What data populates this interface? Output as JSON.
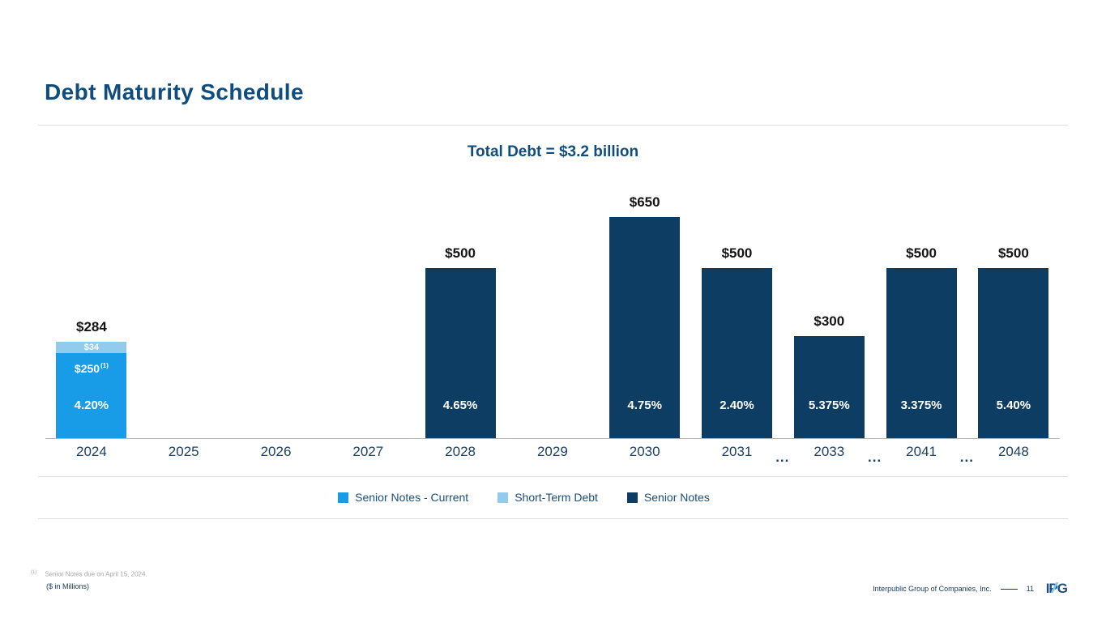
{
  "slide": {
    "title": "Debt Maturity Schedule"
  },
  "chart_data": {
    "type": "bar",
    "stacked": true,
    "title": "Total Debt = $3.2 billion",
    "xlabel": "",
    "ylabel": "",
    "units": "$ in Millions",
    "ylim": [
      0,
      700
    ],
    "grid": false,
    "legend_position": "bottom",
    "gap_label": "...",
    "categories": [
      "2024",
      "2025",
      "2026",
      "2027",
      "2028",
      "2029",
      "2030",
      "2031",
      "2033",
      "2041",
      "2048"
    ],
    "series_colors": {
      "Senior Notes - Current": "#189CE8",
      "Short-Term Debt": "#92CBEC",
      "Senior Notes": "#0E3D63"
    },
    "bars": [
      {
        "category": "2024",
        "total": 284,
        "total_label": "$284",
        "rate_label": "4.20%",
        "gap_after": false,
        "segments": [
          {
            "series": "Short-Term Debt",
            "value": 34,
            "label": "$34"
          },
          {
            "series": "Senior Notes - Current",
            "value": 250,
            "label": "$250",
            "footnote_marker": "(1)"
          }
        ]
      },
      {
        "category": "2025",
        "total": 0,
        "total_label": "",
        "rate_label": "",
        "gap_after": false,
        "segments": []
      },
      {
        "category": "2026",
        "total": 0,
        "total_label": "",
        "rate_label": "",
        "gap_after": false,
        "segments": []
      },
      {
        "category": "2027",
        "total": 0,
        "total_label": "",
        "rate_label": "",
        "gap_after": false,
        "segments": []
      },
      {
        "category": "2028",
        "total": 500,
        "total_label": "$500",
        "rate_label": "4.65%",
        "gap_after": false,
        "segments": [
          {
            "series": "Senior Notes",
            "value": 500
          }
        ]
      },
      {
        "category": "2029",
        "total": 0,
        "total_label": "",
        "rate_label": "",
        "gap_after": false,
        "segments": []
      },
      {
        "category": "2030",
        "total": 650,
        "total_label": "$650",
        "rate_label": "4.75%",
        "gap_after": false,
        "segments": [
          {
            "series": "Senior Notes",
            "value": 650
          }
        ]
      },
      {
        "category": "2031",
        "total": 500,
        "total_label": "$500",
        "rate_label": "2.40%",
        "gap_after": true,
        "segments": [
          {
            "series": "Senior Notes",
            "value": 500
          }
        ]
      },
      {
        "category": "2033",
        "total": 300,
        "total_label": "$300",
        "rate_label": "5.375%",
        "gap_after": true,
        "segments": [
          {
            "series": "Senior Notes",
            "value": 300
          }
        ]
      },
      {
        "category": "2041",
        "total": 500,
        "total_label": "$500",
        "rate_label": "3.375%",
        "gap_after": true,
        "segments": [
          {
            "series": "Senior Notes",
            "value": 500
          }
        ]
      },
      {
        "category": "2048",
        "total": 500,
        "total_label": "$500",
        "rate_label": "5.40%",
        "gap_after": false,
        "segments": [
          {
            "series": "Senior Notes",
            "value": 500
          }
        ]
      }
    ]
  },
  "legend": {
    "items": [
      {
        "label": "Senior Notes - Current",
        "color": "#189CE8"
      },
      {
        "label": "Short-Term Debt",
        "color": "#92CBEC"
      },
      {
        "label": "Senior Notes",
        "color": "#0E3D63"
      }
    ]
  },
  "footnotes": {
    "marker": "(1)",
    "note": "Senior Notes due on April 15, 2024.",
    "units": "($ in Millions)"
  },
  "footer": {
    "company": "Interpublic Group of Companies, Inc.",
    "page_number": "11",
    "logo": "IPG"
  },
  "colors": {
    "brand_navy": "#0F4D7F",
    "bar_navy": "#0E3D63",
    "bright_blue": "#189CE8",
    "light_blue": "#92CBEC"
  }
}
